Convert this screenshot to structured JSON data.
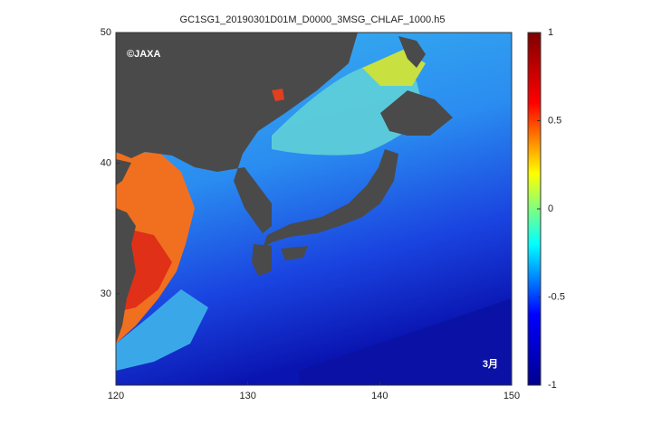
{
  "chart_data": {
    "type": "map",
    "title": "GC1SG1_20190301D01M_D0000_3MSG_CHLAF_1000.h5",
    "xlim": [
      120,
      150
    ],
    "xticks": [
      120,
      130,
      140,
      150
    ],
    "ylim": [
      23,
      50
    ],
    "yticks": [
      30,
      40,
      50
    ],
    "colorbar": {
      "colormap": "jet",
      "lim": [
        -1,
        1
      ],
      "ticks": [
        -1,
        -0.5,
        0,
        0.5,
        1
      ]
    },
    "annotations": [
      "©JAXA",
      "3月"
    ]
  }
}
